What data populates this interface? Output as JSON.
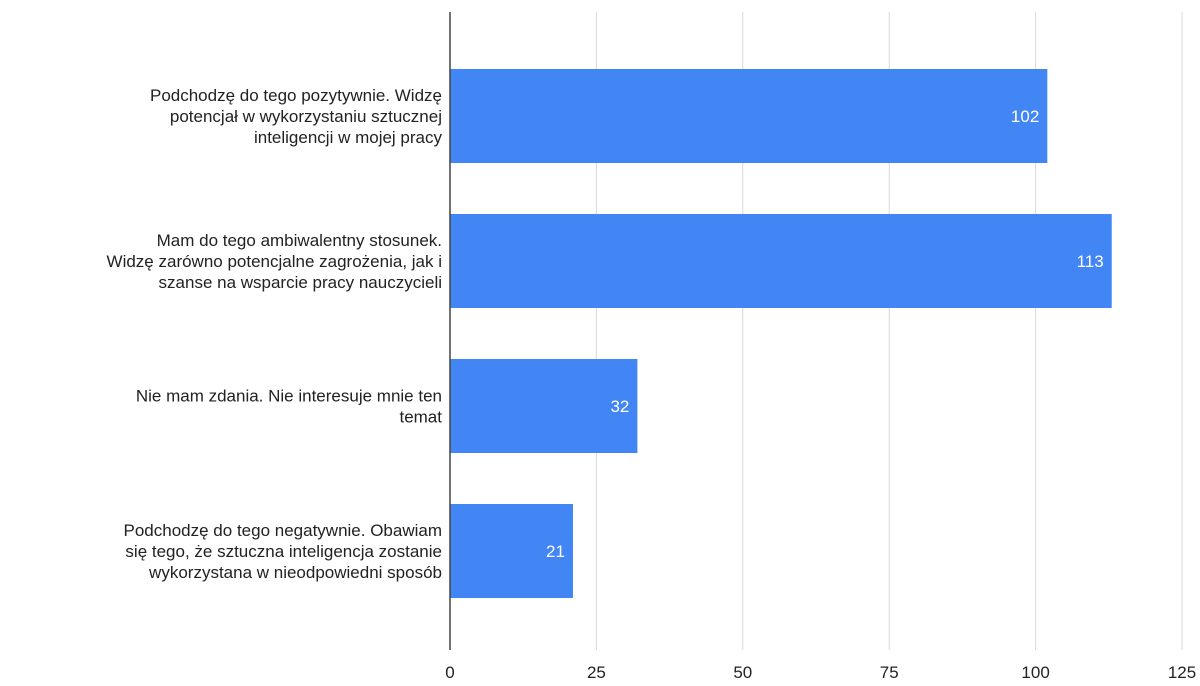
{
  "chart_data": {
    "type": "bar",
    "orientation": "horizontal",
    "categories": [
      [
        "Podchodzę do tego pozytywnie. Widzę",
        "potencjał w wykorzystaniu sztucznej",
        "inteligencji w mojej pracy"
      ],
      [
        "Mam do tego ambiwalentny stosunek.",
        "Widzę zarówno potencjalne zagrożenia, jak i",
        "szanse na wsparcie pracy nauczycieli"
      ],
      [
        "Nie mam zdania. Nie interesuje mnie ten",
        "temat"
      ],
      [
        "Podchodzę do tego negatywnie. Obawiam",
        "się tego, że sztuczna inteligencja zostanie",
        "wykorzystana w nieodpowiedni sposób"
      ]
    ],
    "values": [
      102,
      113,
      32,
      21
    ],
    "data_labels": [
      "102",
      "113",
      "32",
      "21"
    ],
    "xlim": [
      0,
      125
    ],
    "xticks": [
      0,
      25,
      50,
      75,
      100,
      125
    ],
    "xtick_labels": [
      "0",
      "25",
      "50",
      "75",
      "100",
      "125"
    ],
    "grid": true,
    "legend": "none",
    "bar_color": "#4285f4",
    "grid_color": "#d9d9d9",
    "axis_color": "#444444"
  }
}
